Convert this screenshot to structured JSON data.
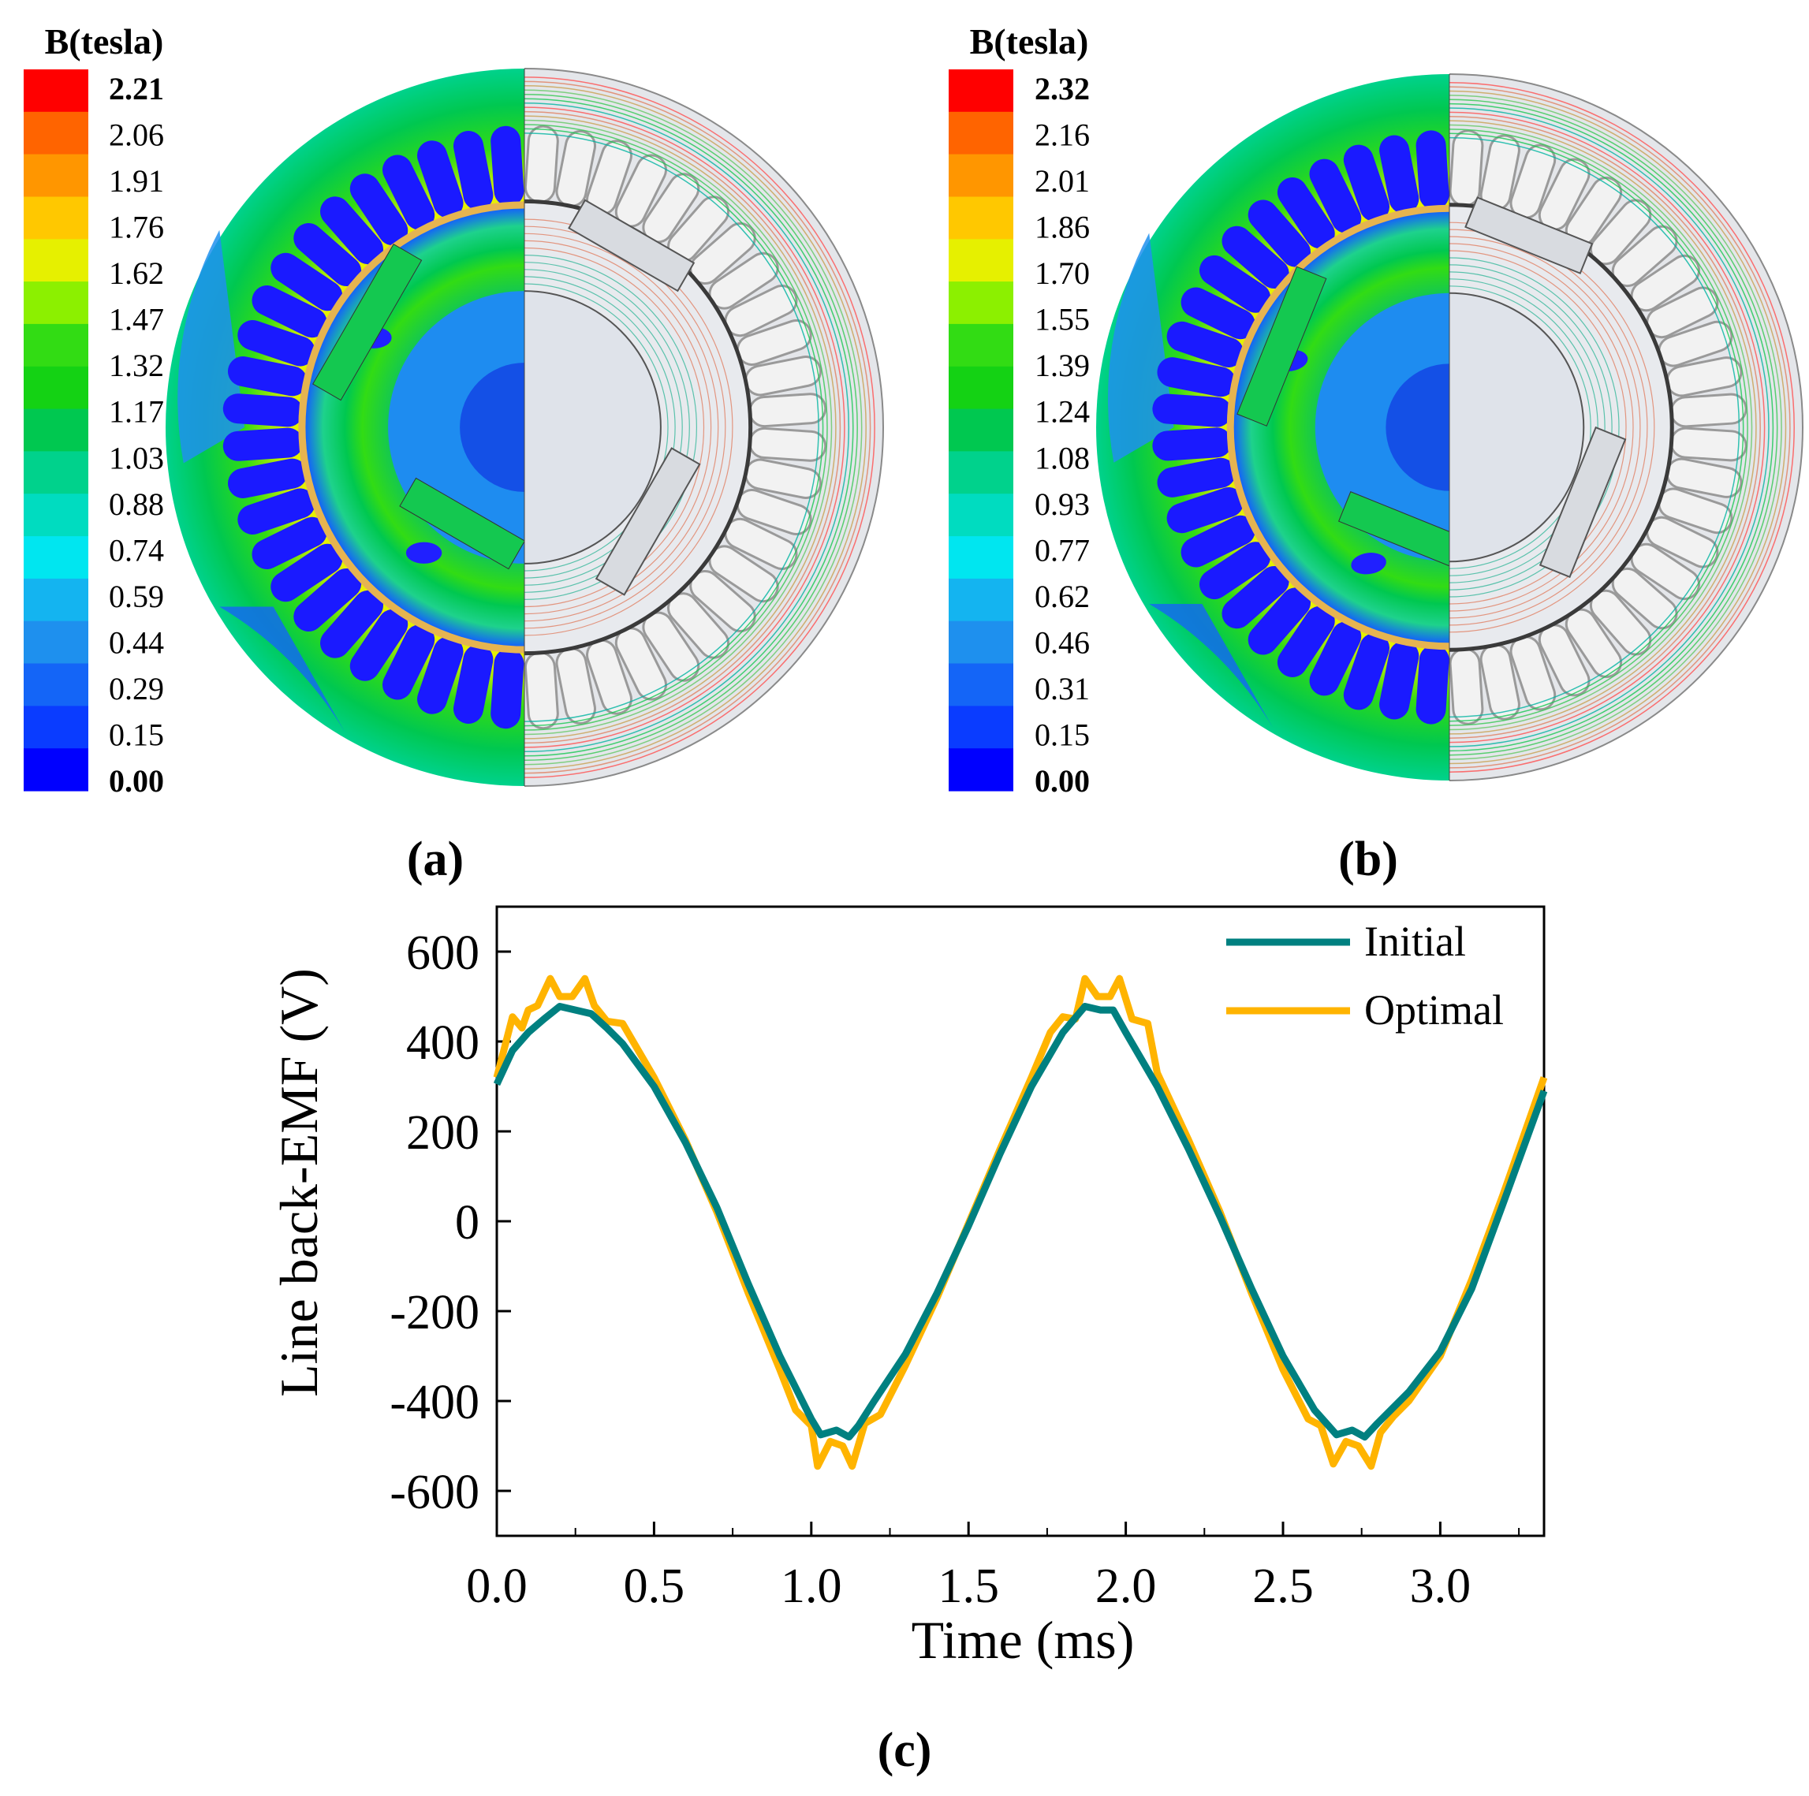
{
  "panels": [
    {
      "label": "(a)",
      "legend_title": "B(tesla)",
      "legend_ticks": [
        "2.21",
        "2.06",
        "1.91",
        "1.76",
        "1.62",
        "1.47",
        "1.32",
        "1.17",
        "1.03",
        "0.88",
        "0.74",
        "0.59",
        "0.44",
        "0.29",
        "0.15",
        "0.00"
      ],
      "bold_ticks": [
        "2.21",
        "0.00"
      ],
      "rotor_rotation_deg": 0
    },
    {
      "label": "(b)",
      "legend_title": "B(tesla)",
      "legend_ticks": [
        "2.32",
        "2.16",
        "2.01",
        "1.86",
        "1.70",
        "1.55",
        "1.39",
        "1.24",
        "1.08",
        "0.93",
        "0.77",
        "0.62",
        "0.46",
        "0.31",
        "0.15",
        "0.00"
      ],
      "bold_ticks": [
        "2.32",
        "0.00"
      ],
      "rotor_rotation_deg": 8
    }
  ],
  "colormap": [
    "#0000ff",
    "#0a3cff",
    "#1465f7",
    "#1e90ee",
    "#14b4f0",
    "#00e6f0",
    "#00dcc0",
    "#00d28c",
    "#00c850",
    "#14d214",
    "#32dc14",
    "#8cf000",
    "#e6f000",
    "#ffc800",
    "#ff9600",
    "#ff6400",
    "#ff0000"
  ],
  "chart_data": {
    "type": "line",
    "panel_label": "(c)",
    "xlabel": "Time (ms)",
    "ylabel": "Line back-EMF (V)",
    "xlim": [
      0.0,
      3.33
    ],
    "ylim": [
      -700,
      700
    ],
    "xticks": [
      0.0,
      0.5,
      1.0,
      1.5,
      2.0,
      2.5,
      3.0
    ],
    "xtick_labels": [
      "0.0",
      "0.5",
      "1.0",
      "1.5",
      "2.0",
      "2.5",
      "3.0"
    ],
    "yticks": [
      600,
      400,
      200,
      0,
      -200,
      -400,
      -600
    ],
    "ytick_labels": [
      "600",
      "400",
      "200",
      "0",
      "-200",
      "-400",
      "-600"
    ],
    "legend_location": "top-right",
    "series": [
      {
        "name": "Initial",
        "color": "#008080",
        "x": [
          0.0,
          0.05,
          0.1,
          0.15,
          0.2,
          0.25,
          0.3,
          0.35,
          0.4,
          0.5,
          0.6,
          0.7,
          0.8,
          0.9,
          1.0,
          1.03,
          1.08,
          1.12,
          1.15,
          1.2,
          1.3,
          1.4,
          1.5,
          1.6,
          1.7,
          1.8,
          1.87,
          1.92,
          1.96,
          2.0,
          2.1,
          2.2,
          2.3,
          2.4,
          2.5,
          2.6,
          2.67,
          2.72,
          2.76,
          2.8,
          2.9,
          3.0,
          3.1,
          3.2,
          3.33
        ],
        "y": [
          305,
          380,
          420,
          450,
          478,
          470,
          462,
          430,
          395,
          300,
          175,
          30,
          -140,
          -300,
          -440,
          -475,
          -465,
          -480,
          -455,
          -400,
          -295,
          -160,
          -10,
          150,
          300,
          420,
          478,
          470,
          470,
          420,
          300,
          160,
          10,
          -150,
          -300,
          -420,
          -475,
          -465,
          -480,
          -450,
          -380,
          -290,
          -150,
          40,
          290
        ]
      },
      {
        "name": "Optimal",
        "color": "#ffb400",
        "x": [
          0.0,
          0.05,
          0.08,
          0.1,
          0.13,
          0.17,
          0.2,
          0.24,
          0.28,
          0.31,
          0.35,
          0.4,
          0.5,
          0.6,
          0.7,
          0.8,
          0.9,
          0.95,
          1.0,
          1.02,
          1.06,
          1.1,
          1.13,
          1.17,
          1.22,
          1.3,
          1.4,
          1.5,
          1.6,
          1.7,
          1.76,
          1.8,
          1.84,
          1.87,
          1.91,
          1.95,
          1.98,
          2.02,
          2.07,
          2.1,
          2.2,
          2.3,
          2.4,
          2.5,
          2.58,
          2.62,
          2.66,
          2.7,
          2.74,
          2.78,
          2.81,
          2.85,
          2.9,
          3.0,
          3.1,
          3.2,
          3.33
        ],
        "y": [
          320,
          455,
          430,
          470,
          480,
          540,
          500,
          500,
          540,
          480,
          445,
          440,
          320,
          180,
          20,
          -160,
          -330,
          -420,
          -455,
          -545,
          -490,
          -500,
          -545,
          -450,
          -430,
          -320,
          -170,
          -5,
          160,
          320,
          420,
          455,
          450,
          540,
          500,
          500,
          540,
          450,
          440,
          330,
          180,
          20,
          -160,
          -330,
          -440,
          -455,
          -540,
          -490,
          -500,
          -545,
          -470,
          -435,
          -400,
          -300,
          -130,
          60,
          320
        ]
      }
    ]
  }
}
